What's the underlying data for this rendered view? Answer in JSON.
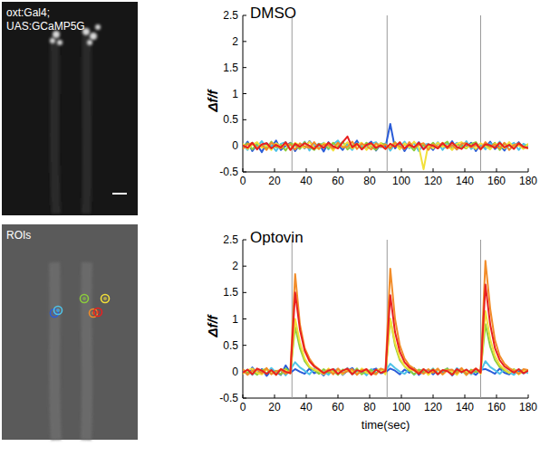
{
  "images": [
    {
      "labels": [
        "oxt:Gal4;",
        "UAS:GCaMP5G"
      ]
    },
    {
      "labels": [
        "ROIs"
      ]
    }
  ],
  "chart_data": [
    {
      "type": "line",
      "title": "DMSO",
      "y_label": "Δf/f",
      "xlim": [
        0,
        180
      ],
      "xticks": [
        0,
        20,
        40,
        60,
        80,
        100,
        120,
        140,
        160,
        180
      ],
      "ylim": [
        -0.5,
        2.5
      ],
      "yticks": [
        -0.5,
        0,
        0.5,
        1,
        1.5,
        2,
        2.5
      ],
      "stimuli": [
        31,
        91,
        150
      ],
      "x": [
        0,
        3,
        6,
        9,
        12,
        15,
        18,
        21,
        24,
        27,
        30,
        33,
        36,
        39,
        42,
        45,
        48,
        51,
        54,
        57,
        60,
        63,
        66,
        69,
        72,
        75,
        78,
        81,
        84,
        87,
        90,
        93,
        96,
        99,
        102,
        105,
        108,
        111,
        114,
        117,
        120,
        123,
        126,
        129,
        132,
        135,
        138,
        141,
        144,
        147,
        150,
        153,
        156,
        159,
        162,
        165,
        168,
        171,
        174,
        177,
        180
      ],
      "series": [
        {
          "color": "#2a5cd8",
          "values": [
            -0.05,
            0.08,
            -0.1,
            0.02,
            -0.12,
            0.05,
            -0.03,
            0.1,
            -0.08,
            0.0,
            0.06,
            -0.1,
            0.03,
            -0.05,
            0.09,
            -0.02,
            0.04,
            -0.11,
            0.07,
            -0.04,
            0.02,
            -0.08,
            0.05,
            -0.03,
            0.1,
            -0.06,
            0.01,
            0.08,
            -0.09,
            0.03,
            -0.02,
            0.42,
            -0.05,
            0.06,
            -0.1,
            0.04,
            -0.03,
            0.07,
            -0.06,
            0.02,
            -0.08,
            0.05,
            0.0,
            -0.04,
            0.09,
            -0.07,
            0.03,
            -0.02,
            0.06,
            -0.1,
            0.04,
            -0.03,
            0.08,
            -0.06,
            0.02,
            -0.09,
            0.05,
            -0.01,
            0.07,
            -0.05,
            0.02
          ]
        },
        {
          "color": "#4fc3e8",
          "values": [
            0.03,
            -0.08,
            0.06,
            -0.02,
            0.09,
            -0.05,
            0.01,
            -0.1,
            0.04,
            0.07,
            -0.06,
            0.02,
            -0.03,
            0.08,
            -0.09,
            0.05,
            -0.01,
            0.06,
            -0.07,
            0.03,
            0.1,
            -0.04,
            0.02,
            -0.08,
            0.05,
            0.0,
            -0.06,
            0.04,
            0.07,
            -0.03,
            0.05,
            -0.09,
            0.03,
            -0.02,
            0.08,
            -0.05,
            0.06,
            -0.1,
            0.02,
            0.04,
            -0.03,
            0.07,
            -0.08,
            0.05,
            -0.01,
            0.06,
            -0.04,
            0.09,
            -0.06,
            0.01,
            0.03,
            -0.07,
            0.05,
            -0.02,
            0.08,
            -0.05,
            0.0,
            0.06,
            -0.08,
            0.04,
            -0.02
          ]
        },
        {
          "color": "#8ccc3c",
          "values": [
            -0.02,
            0.05,
            -0.07,
            0.04,
            0.0,
            -0.05,
            0.08,
            -0.03,
            0.02,
            -0.09,
            0.05,
            0.01,
            -0.06,
            0.07,
            -0.02,
            -0.08,
            0.04,
            0.02,
            -0.05,
            0.06,
            -0.03,
            0.08,
            -0.07,
            0.01,
            0.04,
            -0.05,
            0.06,
            -0.02,
            -0.08,
            0.05,
            0.02,
            -0.04,
            0.07,
            -0.06,
            0.03,
            0.01,
            -0.09,
            0.05,
            0.0,
            -0.03,
            0.06,
            -0.05,
            0.02,
            0.08,
            -0.07,
            0.03,
            -0.01,
            -0.05,
            0.04,
            0.07,
            -0.06,
            0.02,
            -0.03,
            0.06,
            -0.08,
            0.04,
            0.01,
            -0.04,
            0.05,
            -0.02,
            0.03
          ]
        },
        {
          "color": "#f2e03a",
          "values": [
            0.04,
            -0.06,
            0.02,
            0.07,
            -0.04,
            0.01,
            -0.08,
            0.05,
            -0.02,
            0.03,
            -0.07,
            0.06,
            0.0,
            -0.04,
            0.08,
            -0.03,
            -0.06,
            0.05,
            0.02,
            -0.09,
            0.04,
            -0.02,
            0.07,
            -0.05,
            0.01,
            0.06,
            -0.08,
            0.03,
            -0.01,
            0.05,
            -0.06,
            0.02,
            0.04,
            -0.07,
            0.05,
            -0.03,
            0.08,
            -0.02,
            -0.45,
            0.03,
            -0.05,
            0.06,
            -0.02,
            0.01,
            -0.08,
            0.04,
            0.07,
            -0.04,
            0.02,
            -0.06,
            0.05,
            -0.01,
            -0.07,
            0.04,
            0.02,
            -0.05,
            0.07,
            -0.03,
            0.01,
            -0.06,
            0.04
          ]
        },
        {
          "color": "#f28c28",
          "values": [
            -0.06,
            0.03,
            0.05,
            -0.04,
            0.02,
            -0.08,
            0.06,
            0.0,
            -0.05,
            0.04,
            0.02,
            -0.07,
            0.05,
            -0.01,
            -0.04,
            0.07,
            -0.06,
            0.03,
            0.01,
            -0.05,
            0.06,
            -0.03,
            -0.02,
            0.08,
            -0.06,
            0.04,
            0.0,
            -0.07,
            0.05,
            -0.02,
            0.03,
            -0.05,
            0.06,
            -0.01,
            -0.06,
            0.07,
            -0.04,
            0.02,
            0.05,
            -0.08,
            0.03,
            -0.02,
            0.06,
            -0.05,
            0.01,
            -0.07,
            0.04,
            0.05,
            -0.03,
            0.02,
            -0.06,
            0.07,
            -0.02,
            0.03,
            -0.05,
            0.06,
            -0.08,
            0.02,
            0.04,
            -0.03,
            -0.05
          ]
        },
        {
          "color": "#e82020",
          "values": [
            0.01,
            -0.04,
            0.06,
            -0.07,
            0.03,
            0.05,
            -0.05,
            0.02,
            -0.03,
            0.07,
            -0.08,
            0.04,
            -0.02,
            0.05,
            0.0,
            -0.06,
            0.03,
            -0.04,
            0.06,
            -0.01,
            -0.05,
            0.07,
            0.18,
            -0.03,
            0.04,
            -0.07,
            0.02,
            0.05,
            -0.04,
            0.01,
            -0.06,
            0.04,
            -0.02,
            0.07,
            -0.05,
            0.02,
            -0.03,
            0.06,
            -0.07,
            0.03,
            0.0,
            -0.05,
            0.05,
            -0.03,
            0.06,
            -0.02,
            -0.06,
            0.04,
            -0.01,
            0.05,
            -0.07,
            0.03,
            0.01,
            -0.04,
            0.06,
            -0.03,
            0.02,
            -0.06,
            0.05,
            -0.02,
            -0.04
          ]
        }
      ]
    },
    {
      "type": "line",
      "title": "Optovin",
      "x_label": "time(sec)",
      "y_label": "Δf/f",
      "xlim": [
        0,
        180
      ],
      "xticks": [
        0,
        20,
        40,
        60,
        80,
        100,
        120,
        140,
        160,
        180
      ],
      "ylim": [
        -0.5,
        2.5
      ],
      "yticks": [
        -0.5,
        0,
        0.5,
        1,
        1.5,
        2,
        2.5
      ],
      "stimuli": [
        31,
        91,
        150
      ],
      "x": [
        0,
        3,
        6,
        9,
        12,
        15,
        18,
        21,
        24,
        27,
        30,
        33,
        36,
        39,
        42,
        45,
        48,
        51,
        54,
        57,
        60,
        63,
        66,
        69,
        72,
        75,
        78,
        81,
        84,
        87,
        90,
        93,
        96,
        99,
        102,
        105,
        108,
        111,
        114,
        117,
        120,
        123,
        126,
        129,
        132,
        135,
        138,
        141,
        144,
        147,
        150,
        153,
        156,
        159,
        162,
        165,
        168,
        171,
        174,
        177,
        180
      ],
      "series": [
        {
          "color": "#2a5cd8",
          "values": [
            0.02,
            -0.05,
            0.08,
            -0.03,
            0.05,
            -0.08,
            0.03,
            0.0,
            -0.06,
            0.12,
            -0.02,
            0.05,
            0.0,
            -0.04,
            0.06,
            -0.03,
            0.02,
            -0.07,
            0.04,
            -0.01,
            0.05,
            -0.06,
            0.02,
            0.07,
            -0.04,
            0.01,
            -0.05,
            0.03,
            0.06,
            -0.03,
            -0.01,
            0.06,
            0.02,
            -0.05,
            0.04,
            -0.02,
            0.07,
            -0.06,
            0.01,
            0.03,
            -0.05,
            0.04,
            -0.02,
            0.06,
            -0.07,
            0.02,
            0.05,
            -0.03,
            0.0,
            -0.06,
            0.04,
            0.05,
            0.01,
            -0.04,
            0.06,
            -0.02,
            -0.05,
            0.03,
            0.01,
            -0.03,
            0.02
          ]
        },
        {
          "color": "#4fc3e8",
          "values": [
            -0.03,
            0.04,
            -0.06,
            0.05,
            0.01,
            -0.04,
            0.07,
            -0.02,
            0.03,
            -0.07,
            0.04,
            0.18,
            0.08,
            0.02,
            -0.05,
            0.06,
            -0.03,
            0.01,
            -0.06,
            0.05,
            0.02,
            -0.04,
            0.07,
            -0.05,
            0.0,
            0.03,
            -0.07,
            0.05,
            -0.02,
            0.04,
            0.01,
            0.15,
            0.07,
            0.0,
            -0.04,
            0.05,
            -0.06,
            0.02,
            0.04,
            -0.03,
            0.06,
            -0.05,
            0.01,
            0.03,
            -0.06,
            0.07,
            -0.02,
            0.04,
            -0.05,
            0.02,
            0.0,
            0.2,
            0.09,
            0.03,
            -0.04,
            0.05,
            -0.01,
            -0.06,
            0.04,
            0.02,
            -0.03
          ]
        },
        {
          "color": "#8ccc3c",
          "values": [
            0.04,
            -0.02,
            0.01,
            -0.06,
            0.03,
            0.05,
            -0.04,
            0.02,
            -0.05,
            0.06,
            -0.01,
            0.85,
            0.45,
            0.2,
            0.08,
            0.03,
            -0.04,
            0.05,
            -0.02,
            0.01,
            -0.06,
            0.04,
            0.02,
            -0.03,
            0.06,
            -0.05,
            0.01,
            0.03,
            -0.04,
            0.05,
            -0.02,
            1.0,
            0.5,
            0.22,
            0.1,
            0.02,
            -0.05,
            0.04,
            0.0,
            -0.03,
            0.05,
            -0.04,
            0.02,
            0.06,
            -0.05,
            0.01,
            0.03,
            -0.06,
            0.04,
            -0.01,
            0.02,
            0.9,
            0.48,
            0.22,
            0.09,
            0.03,
            -0.03,
            0.05,
            -0.04,
            0.01,
            0.03
          ]
        },
        {
          "color": "#f2e03a",
          "values": [
            -0.04,
            0.03,
            0.06,
            -0.02,
            -0.05,
            0.04,
            0.01,
            -0.06,
            0.05,
            0.02,
            -0.03,
            1.0,
            0.55,
            0.25,
            0.1,
            0.04,
            0.01,
            -0.05,
            0.06,
            -0.02,
            0.03,
            -0.05,
            0.05,
            0.01,
            -0.04,
            0.06,
            -0.02,
            -0.04,
            0.03,
            0.05,
            -0.05,
            1.0,
            0.55,
            0.26,
            0.11,
            0.04,
            0.02,
            -0.03,
            0.05,
            -0.06,
            0.02,
            0.04,
            -0.05,
            0.03,
            0.01,
            -0.06,
            0.05,
            0.0,
            -0.03,
            0.06,
            -0.04,
            1.15,
            0.62,
            0.3,
            0.13,
            0.05,
            -0.02,
            0.04,
            -0.05,
            0.02,
            0.01
          ]
        },
        {
          "color": "#f28c28",
          "values": [
            0.05,
            -0.06,
            0.02,
            0.04,
            -0.03,
            0.07,
            -0.05,
            0.01,
            0.03,
            -0.04,
            0.02,
            1.85,
            0.9,
            0.45,
            0.25,
            0.12,
            0.05,
            -0.02,
            0.04,
            -0.05,
            0.06,
            -0.03,
            0.01,
            0.05,
            -0.06,
            0.03,
            0.04,
            -0.02,
            -0.05,
            0.06,
            0.03,
            1.95,
            1.0,
            0.5,
            0.25,
            0.12,
            0.06,
            0.0,
            -0.04,
            0.05,
            -0.02,
            0.06,
            -0.05,
            0.03,
            0.04,
            -0.03,
            0.07,
            -0.06,
            0.02,
            0.05,
            0.01,
            2.1,
            1.2,
            0.6,
            0.3,
            0.15,
            0.07,
            0.02,
            -0.04,
            0.05,
            0.03
          ]
        },
        {
          "color": "#e82020",
          "values": [
            -0.02,
            0.04,
            -0.05,
            0.06,
            0.02,
            -0.04,
            0.03,
            -0.06,
            0.05,
            0.0,
            -0.03,
            1.5,
            0.8,
            0.4,
            0.2,
            0.1,
            0.04,
            -0.03,
            0.02,
            0.05,
            -0.04,
            0.02,
            0.06,
            -0.05,
            0.03,
            0.0,
            0.05,
            -0.06,
            0.04,
            -0.02,
            0.01,
            1.45,
            0.75,
            0.38,
            0.18,
            0.08,
            0.03,
            -0.04,
            0.05,
            -0.02,
            0.04,
            -0.05,
            0.03,
            0.01,
            -0.06,
            0.05,
            -0.01,
            0.04,
            -0.03,
            0.06,
            -0.02,
            1.65,
            0.9,
            0.45,
            0.22,
            0.1,
            0.04,
            -0.02,
            0.05,
            -0.03,
            0.02
          ]
        }
      ]
    }
  ]
}
